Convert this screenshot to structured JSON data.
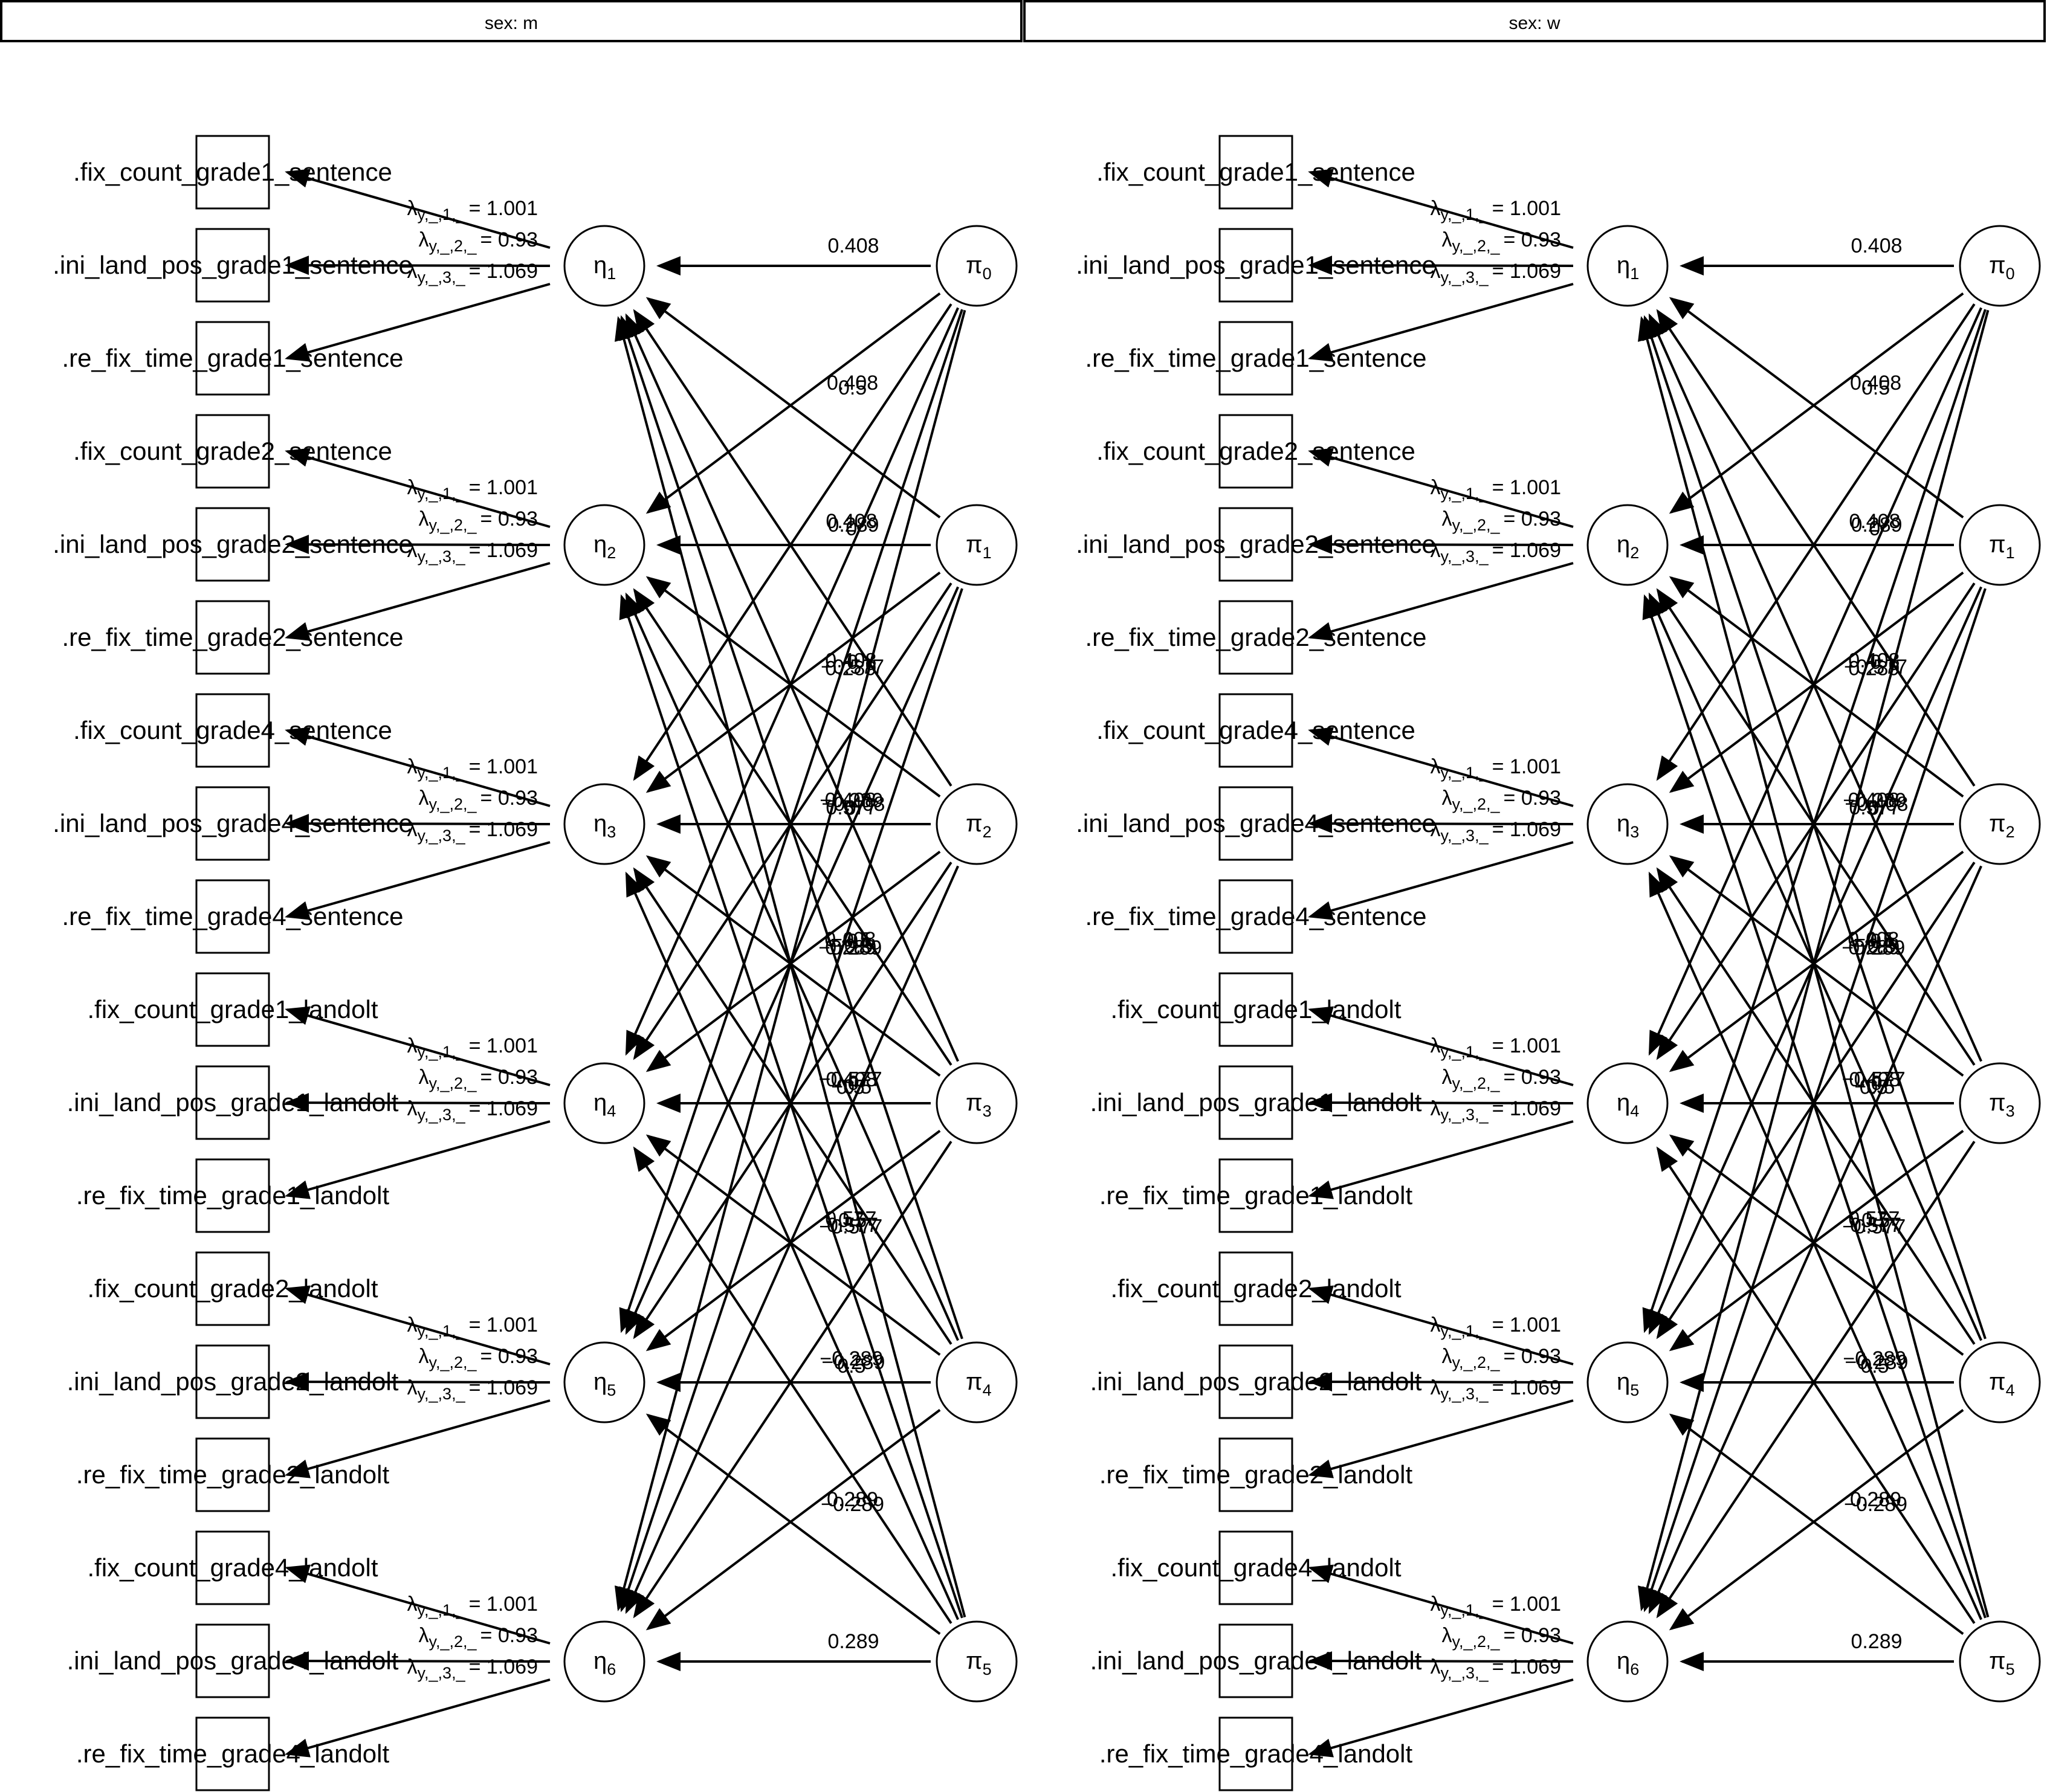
{
  "panels": [
    {
      "strip_label": "sex: m"
    },
    {
      "strip_label": "sex: w"
    }
  ],
  "observed": [
    ".fix_count_grade1_sentence",
    ".ini_land_pos_grade1_sentence",
    ".re_fix_time_grade1_sentence",
    ".fix_count_grade2_sentence",
    ".ini_land_pos_grade2_sentence",
    ".re_fix_time_grade2_sentence",
    ".fix_count_grade4_sentence",
    ".ini_land_pos_grade4_sentence",
    ".re_fix_time_grade4_sentence",
    ".fix_count_grade1_landolt",
    ".ini_land_pos_grade1_landolt",
    ".re_fix_time_grade1_landolt",
    ".fix_count_grade2_landolt",
    ".ini_land_pos_grade2_landolt",
    ".re_fix_time_grade2_landolt",
    ".fix_count_grade4_landolt",
    ".ini_land_pos_grade4_landolt",
    ".re_fix_time_grade4_landolt"
  ],
  "eta": [
    {
      "symbol": "η",
      "index": "1"
    },
    {
      "symbol": "η",
      "index": "2"
    },
    {
      "symbol": "η",
      "index": "3"
    },
    {
      "symbol": "η",
      "index": "4"
    },
    {
      "symbol": "η",
      "index": "5"
    },
    {
      "symbol": "η",
      "index": "6"
    }
  ],
  "pi": [
    {
      "symbol": "π",
      "index": "0"
    },
    {
      "symbol": "π",
      "index": "1"
    },
    {
      "symbol": "π",
      "index": "2"
    },
    {
      "symbol": "π",
      "index": "3"
    },
    {
      "symbol": "π",
      "index": "4"
    },
    {
      "symbol": "π",
      "index": "5"
    }
  ],
  "loadings": [
    {
      "symbol": "λ",
      "subscript": "y,_,1,_",
      "value": "= 1.001"
    },
    {
      "symbol": "λ",
      "subscript": "y,_,2,_",
      "value": "= 0.93"
    },
    {
      "symbol": "λ",
      "subscript": "y,_,3,_",
      "value": "= 1.069"
    }
  ],
  "pi_to_eta": [
    [
      0.408,
      0.408,
      0.408,
      0.408,
      0.408,
      0.408
    ],
    [
      0.5,
      0.289,
      0,
      -0.289,
      -0.5,
      -0.577
    ],
    [
      0,
      -0.577,
      -0.408,
      0,
      0.408,
      0.577
    ],
    [
      0.289,
      0.577,
      -0.5,
      0,
      0.5,
      -0.289
    ],
    [
      0,
      0.289,
      -0.5,
      0.577,
      -0.289,
      0.289
    ],
    [
      -0.289,
      0.5,
      -0.577,
      0.5,
      -0.289,
      0.289
    ]
  ],
  "pi_to_eta_labels": [
    [
      "0.408",
      "0.408",
      "0.408",
      "0.408",
      "0.408",
      "0.408"
    ],
    [
      "0.5",
      "0.289",
      "0",
      "−0.289",
      "−0.5",
      "−0.577"
    ],
    [
      "0",
      "−0.577",
      "−0.408",
      "0",
      "0.408",
      "0.577"
    ],
    [
      "0.289",
      "0.577",
      "−0.5",
      "0",
      "0.5",
      "−0.289"
    ],
    [
      "0",
      "0.289",
      "−0.5",
      "0.577",
      "−0.289",
      "0.289"
    ],
    [
      "−0.289",
      "0.5",
      "−0.577",
      "0.5",
      "−0.289",
      "0.289"
    ]
  ]
}
